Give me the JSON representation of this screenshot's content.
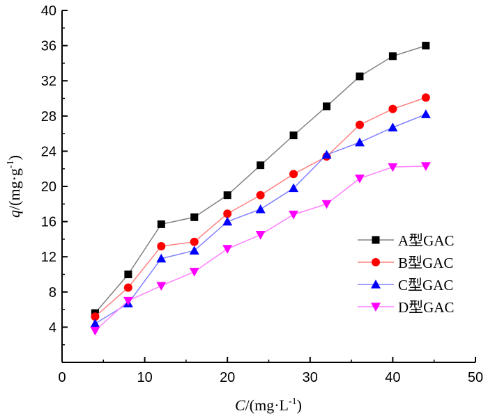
{
  "chart_data": {
    "type": "line",
    "title": "",
    "xlabel": "C/(mg·L⁻¹)",
    "xlabel_parts": {
      "var": "C",
      "rest": "/(mg·L",
      "sup": "-1",
      "close": ")"
    },
    "ylabel": "q/(mg·g⁻¹)",
    "ylabel_parts": {
      "var": "q",
      "rest": "/(mg·g",
      "sup": "-1",
      "close": ")"
    },
    "xlim": [
      0,
      50
    ],
    "ylim": [
      0,
      40
    ],
    "x_ticks": [
      0,
      10,
      20,
      30,
      40,
      50
    ],
    "y_ticks": [
      4,
      8,
      12,
      16,
      20,
      24,
      28,
      32,
      36,
      40
    ],
    "grid": false,
    "legend_position": "bottom-right",
    "x": [
      4,
      8,
      12,
      16,
      20,
      24,
      28,
      32,
      36,
      40,
      44
    ],
    "series": [
      {
        "name": "A型GAC",
        "marker": "square",
        "line_color": "#808080",
        "marker_color": "#000000",
        "values": [
          5.6,
          10.0,
          15.7,
          16.5,
          19.0,
          22.4,
          25.8,
          29.1,
          32.5,
          34.8,
          36.0
        ]
      },
      {
        "name": "B型GAC",
        "marker": "circle",
        "line_color": "#ff8080",
        "marker_color": "#ff0000",
        "values": [
          5.2,
          8.5,
          13.2,
          13.7,
          16.9,
          19.0,
          21.4,
          23.4,
          27.0,
          28.8,
          30.1
        ]
      },
      {
        "name": "C型GAC",
        "marker": "triangle-up",
        "line_color": "#8080ff",
        "marker_color": "#0000ff",
        "values": [
          4.4,
          6.7,
          11.8,
          12.7,
          16.0,
          17.4,
          19.8,
          23.6,
          25.0,
          26.7,
          28.2
        ]
      },
      {
        "name": "D型GAC",
        "marker": "triangle-down",
        "line_color": "#ff80ff",
        "marker_color": "#ff00ff",
        "values": [
          3.6,
          7.0,
          8.7,
          10.3,
          12.9,
          14.5,
          16.8,
          18.0,
          20.9,
          22.2,
          22.3
        ]
      }
    ]
  }
}
